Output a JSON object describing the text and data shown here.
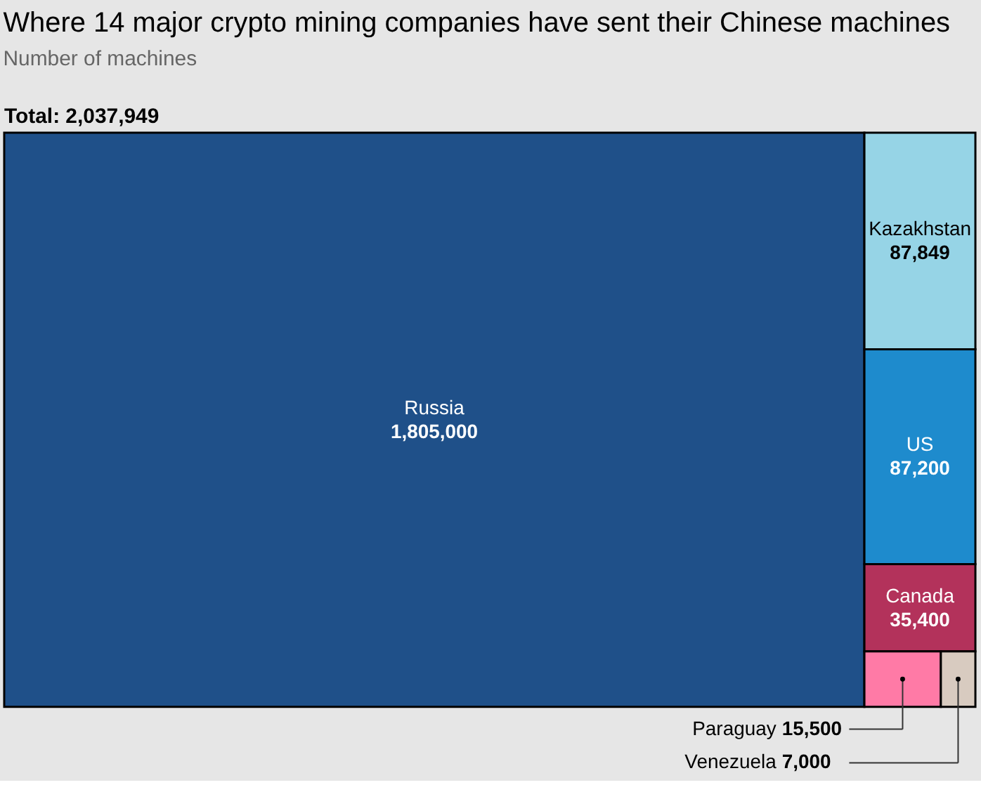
{
  "chart_data": {
    "type": "other",
    "title": "Where 14 major crypto mining companies have sent their Chinese machines",
    "subtitle": "Number of machines",
    "annotations": [
      "Total: 2,037,949"
    ],
    "categories": [
      "Russia",
      "Kazakhstan",
      "US",
      "Canada",
      "Paraguay",
      "Venezuela"
    ],
    "values": [
      1805000,
      87849,
      87200,
      35400,
      15500,
      7000
    ],
    "value_labels": [
      "1,805,000",
      "87,849",
      "87,200",
      "35,400",
      "15,500",
      "7,000"
    ],
    "colors": [
      "#1f5089",
      "#96d4e6",
      "#1e8bcd",
      "#b3325b",
      "#ff7aa6",
      "#d8cbc0"
    ]
  }
}
